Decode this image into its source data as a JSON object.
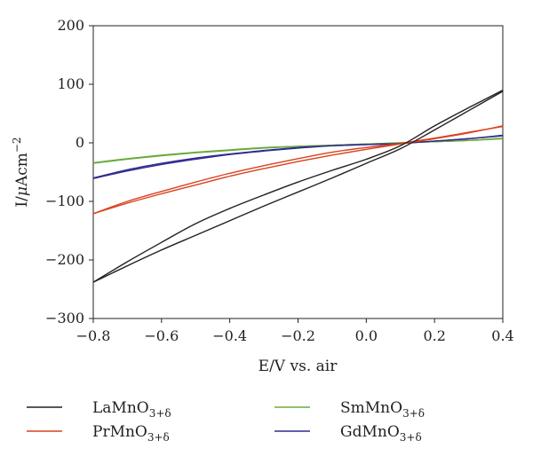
{
  "chart_data": {
    "type": "line",
    "title": "",
    "xlabel": "E/V vs. air",
    "ylabel_parts": {
      "main": "I/",
      "mu": "μ",
      "unit": "Acm",
      "exp": "−2"
    },
    "xlim": [
      -0.8,
      0.4
    ],
    "ylim": [
      -300,
      200
    ],
    "x_ticks": [
      "−0.8",
      "−0.6",
      "−0.4",
      "−0.2",
      "0.0",
      "0.2",
      "0.4"
    ],
    "y_ticks": [
      "200",
      "100",
      "0",
      "−100",
      "−200",
      "−300"
    ],
    "grid": false,
    "legend_position": "bottom",
    "series": [
      {
        "name_parts": {
          "base": "LaMnO",
          "sub": "3+δ"
        },
        "color": "#231f20",
        "x": [
          -0.8,
          -0.7,
          -0.6,
          -0.5,
          -0.4,
          -0.3,
          -0.2,
          -0.1,
          0.0,
          0.1,
          0.2,
          0.3,
          0.4
        ],
        "y_fwd": [
          -238,
          -210,
          -183,
          -158,
          -133,
          -108,
          -84,
          -60,
          -35,
          -10,
          22,
          55,
          88
        ],
        "y_rev": [
          -238,
          -203,
          -170,
          -138,
          -112,
          -89,
          -67,
          -47,
          -28,
          -5,
          29,
          60,
          90
        ]
      },
      {
        "name_parts": {
          "base": "PrMnO",
          "sub": "3+δ"
        },
        "color": "#d9421e",
        "x": [
          -0.8,
          -0.7,
          -0.6,
          -0.5,
          -0.4,
          -0.3,
          -0.2,
          -0.1,
          0.0,
          0.1,
          0.2,
          0.3,
          0.4
        ],
        "y_fwd": [
          -121,
          -100,
          -83,
          -67,
          -52,
          -39,
          -27,
          -16,
          -8,
          -1,
          8,
          18,
          28
        ],
        "y_rev": [
          -121,
          -103,
          -87,
          -72,
          -57,
          -44,
          -32,
          -21,
          -11,
          -2,
          7,
          17,
          29
        ]
      },
      {
        "name_parts": {
          "base": "SmMnO",
          "sub": "3+δ"
        },
        "color": "#6aab3c",
        "x": [
          -0.8,
          -0.7,
          -0.6,
          -0.5,
          -0.4,
          -0.3,
          -0.2,
          -0.1,
          0.0,
          0.1,
          0.2,
          0.3,
          0.4
        ],
        "y_fwd": [
          -35,
          -28,
          -22,
          -17,
          -13,
          -9,
          -6,
          -4,
          -2,
          0,
          2,
          4,
          7
        ],
        "y_rev": [
          -34,
          -27,
          -21,
          -16,
          -12,
          -8,
          -6,
          -4,
          -2,
          0,
          2,
          4,
          8
        ]
      },
      {
        "name_parts": {
          "base": "GdMnO",
          "sub": "3+δ"
        },
        "color": "#2e2a8f",
        "x": [
          -0.8,
          -0.7,
          -0.6,
          -0.5,
          -0.4,
          -0.3,
          -0.2,
          -0.1,
          0.0,
          0.1,
          0.2,
          0.3,
          0.4
        ],
        "y_fwd": [
          -61,
          -48,
          -37,
          -28,
          -20,
          -14,
          -9,
          -5,
          -3,
          -1,
          3,
          7,
          13
        ],
        "y_rev": [
          -60,
          -46,
          -35,
          -26,
          -19,
          -13,
          -8,
          -5,
          -3,
          -1,
          3,
          7,
          12
        ]
      }
    ]
  }
}
